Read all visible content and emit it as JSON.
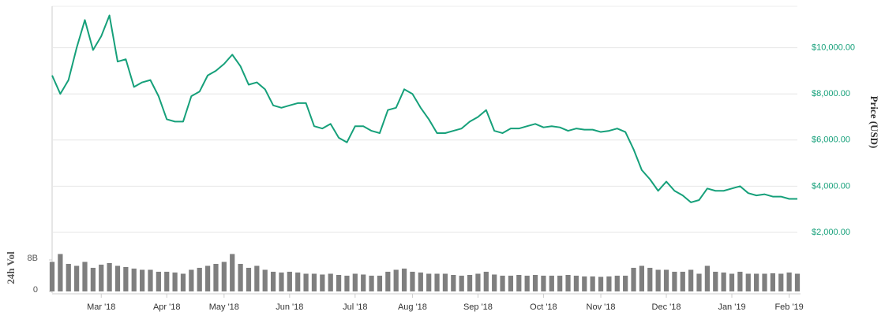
{
  "chart_data": [
    {
      "type": "line",
      "y_label": "Price (USD)",
      "color": "#16a07a",
      "grid": true,
      "categories": [
        null,
        null,
        null,
        null,
        null,
        null,
        "Mar '18",
        null,
        null,
        null,
        null,
        null,
        null,
        null,
        "Apr '18",
        null,
        null,
        null,
        null,
        null,
        null,
        "May '18",
        null,
        null,
        null,
        null,
        null,
        null,
        null,
        "Jun '18",
        null,
        null,
        null,
        null,
        null,
        null,
        null,
        "Jul '18",
        null,
        null,
        null,
        null,
        null,
        null,
        "Aug '18",
        null,
        null,
        null,
        null,
        null,
        null,
        null,
        "Sep '18",
        null,
        null,
        null,
        null,
        null,
        null,
        null,
        "Oct '18",
        null,
        null,
        null,
        null,
        null,
        null,
        "Nov '18",
        null,
        null,
        null,
        null,
        null,
        null,
        null,
        "Dec '18",
        null,
        null,
        null,
        null,
        null,
        null,
        null,
        "Jan '19",
        null,
        null,
        null,
        null,
        null,
        null,
        "Feb '19",
        null
      ],
      "values": [
        8800,
        8000,
        8600,
        10000,
        11200,
        9900,
        10500,
        11400,
        9400,
        9500,
        8300,
        8500,
        8600,
        7900,
        6900,
        6800,
        6800,
        7900,
        8100,
        8800,
        9000,
        9300,
        9700,
        9200,
        8400,
        8500,
        8200,
        7500,
        7400,
        7500,
        7600,
        7600,
        6600,
        6500,
        6700,
        6100,
        5900,
        6600,
        6600,
        6400,
        6300,
        7300,
        7400,
        8200,
        8000,
        7400,
        6900,
        6300,
        6300,
        6400,
        6500,
        6800,
        7000,
        7300,
        6400,
        6300,
        6500,
        6500,
        6600,
        6700,
        6550,
        6600,
        6550,
        6400,
        6500,
        6450,
        6450,
        6350,
        6400,
        6500,
        6350,
        5600,
        4700,
        4300,
        3800,
        4200,
        3800,
        3600,
        3300,
        3400,
        3900,
        3800,
        3800,
        3900,
        4000,
        3700,
        3600,
        3650,
        3550,
        3550,
        3450,
        3450
      ],
      "ylim": [
        2000,
        12000
      ],
      "yticks": [
        {
          "value": 2000,
          "label": "$2,000.00"
        },
        {
          "value": 4000,
          "label": "$4,000.00"
        },
        {
          "value": 6000,
          "label": "$6,000.00"
        },
        {
          "value": 8000,
          "label": "$8,000.00"
        },
        {
          "value": 10000,
          "label": "$10,000.00"
        }
      ]
    },
    {
      "type": "bar",
      "y_label": "24h Vol",
      "color": "#7f7f7f",
      "values": [
        7500000000,
        9500000000,
        7000000000,
        6500000000,
        7500000000,
        6000000000,
        6800000000,
        7200000000,
        6500000000,
        6200000000,
        5800000000,
        5500000000,
        5500000000,
        5000000000,
        5000000000,
        4800000000,
        4500000000,
        5500000000,
        6000000000,
        6500000000,
        7000000000,
        7500000000,
        9500000000,
        7000000000,
        6000000000,
        6500000000,
        5500000000,
        5000000000,
        4800000000,
        5000000000,
        4800000000,
        4500000000,
        4500000000,
        4300000000,
        4500000000,
        4200000000,
        4000000000,
        4500000000,
        4300000000,
        4000000000,
        4000000000,
        5000000000,
        5500000000,
        5800000000,
        5000000000,
        4800000000,
        4500000000,
        4500000000,
        4500000000,
        4200000000,
        4000000000,
        4200000000,
        4500000000,
        5000000000,
        4300000000,
        4000000000,
        4000000000,
        4200000000,
        4000000000,
        4200000000,
        4000000000,
        4000000000,
        4000000000,
        4200000000,
        4000000000,
        3800000000,
        3800000000,
        3700000000,
        3800000000,
        4000000000,
        4000000000,
        6000000000,
        6500000000,
        6000000000,
        5500000000,
        5500000000,
        5000000000,
        5000000000,
        5500000000,
        4500000000,
        6500000000,
        5000000000,
        4800000000,
        4500000000,
        5000000000,
        4500000000,
        4500000000,
        4500000000,
        4600000000,
        4500000000,
        4800000000,
        4500000000
      ],
      "ylim": [
        0,
        14000000000
      ],
      "yticks": [
        0,
        {
          "value": 8000000000,
          "label": "8B"
        }
      ]
    }
  ]
}
